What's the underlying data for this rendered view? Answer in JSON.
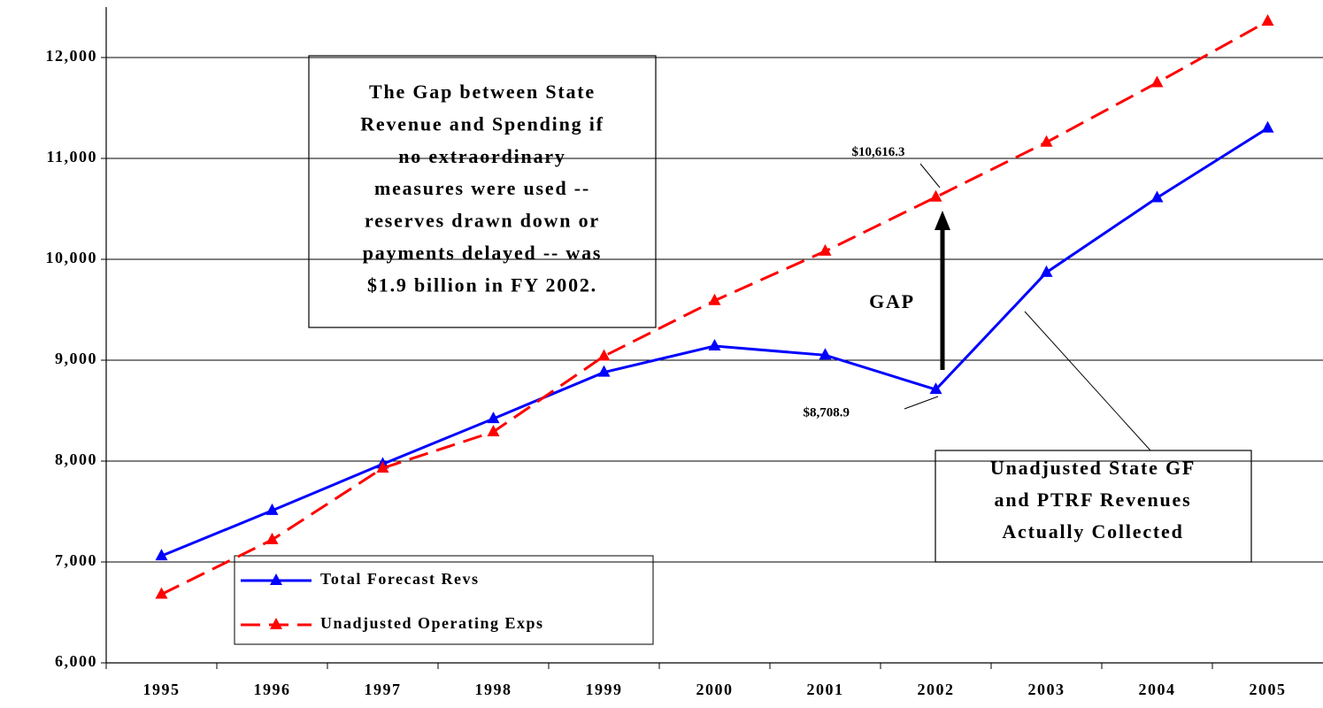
{
  "chart_data": {
    "type": "line",
    "categories": [
      "1995",
      "1996",
      "1997",
      "1998",
      "1999",
      "2000",
      "2001",
      "2002",
      "2003",
      "2004",
      "2005"
    ],
    "series": [
      {
        "name": "Total Forecast Revs",
        "color": "#0000ff",
        "style": "solid",
        "values": [
          7060,
          7510,
          7970,
          8420,
          8880,
          9140,
          9050,
          8708.9,
          9870,
          10610,
          11300
        ],
        "value_labels": [
          null,
          null,
          null,
          null,
          null,
          null,
          null,
          "$8,708.9",
          null,
          null,
          null
        ]
      },
      {
        "name": "Unadjusted Operating Exps",
        "color": "#ff0000",
        "style": "dashed",
        "values": [
          6680,
          7220,
          7930,
          8290,
          9040,
          9590,
          10080,
          10616.3,
          11160,
          11750,
          12360
        ],
        "value_labels": [
          null,
          null,
          null,
          null,
          null,
          null,
          null,
          "$10,616.3",
          null,
          null,
          null
        ]
      }
    ],
    "ylim": [
      6000,
      12500
    ],
    "yticks": [
      {
        "value": 6000,
        "label": "6,000"
      },
      {
        "value": 7000,
        "label": "7,000"
      },
      {
        "value": 8000,
        "label": "8,000"
      },
      {
        "value": 9000,
        "label": "9,000"
      },
      {
        "value": 10000,
        "label": "10,000"
      },
      {
        "value": 11000,
        "label": "11,000"
      },
      {
        "value": 12000,
        "label": "12,000"
      }
    ],
    "grid": true,
    "legend": "lower left",
    "annotations": {
      "note": [
        "The Gap between State",
        "Revenue and Spending if",
        "no extraordinary",
        "measures were used --",
        "reserves drawn down or",
        "payments delayed -- was",
        "$1.9 billion in FY 2002."
      ],
      "gap": "GAP",
      "callout": [
        "Unadjusted State GF",
        "and PTRF Revenues",
        "Actually Collected"
      ]
    }
  }
}
